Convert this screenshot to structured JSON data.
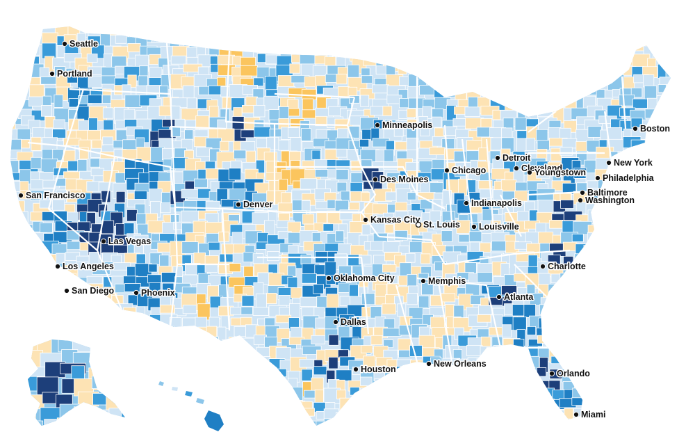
{
  "palette": {
    "dark_blue": "#1d3f7a",
    "blue": "#1f7fc4",
    "mid_blue": "#3a9bd9",
    "light_blue": "#8cc6ea",
    "pale_blue": "#cfe4f5",
    "pale_orange": "#fde3b4",
    "orange": "#fbc55e",
    "deep_orange": "#f08a1c",
    "border": "#ffffff",
    "label": "#111111"
  },
  "cities": [
    {
      "name": "Seattle",
      "dot": "filled"
    },
    {
      "name": "Portland",
      "dot": "filled"
    },
    {
      "name": "San Francisco",
      "dot": "filled"
    },
    {
      "name": "Los Angeles",
      "dot": "filled"
    },
    {
      "name": "San Diego",
      "dot": "filled"
    },
    {
      "name": "Las Vegas",
      "dot": "filled"
    },
    {
      "name": "Phoenix",
      "dot": "filled"
    },
    {
      "name": "Denver",
      "dot": "filled"
    },
    {
      "name": "Minneapolis",
      "dot": "filled"
    },
    {
      "name": "Des Moines",
      "dot": "filled"
    },
    {
      "name": "Kansas City",
      "dot": "filled"
    },
    {
      "name": "St. Louis",
      "dot": "hollow"
    },
    {
      "name": "Oklahoma City",
      "dot": "filled"
    },
    {
      "name": "Dallas",
      "dot": "filled"
    },
    {
      "name": "Houston",
      "dot": "filled"
    },
    {
      "name": "New Orleans",
      "dot": "filled"
    },
    {
      "name": "Memphis",
      "dot": "filled"
    },
    {
      "name": "Chicago",
      "dot": "filled"
    },
    {
      "name": "Detroit",
      "dot": "filled"
    },
    {
      "name": "Cleveland",
      "dot": "filled"
    },
    {
      "name": "Youngstown",
      "dot": "filled"
    },
    {
      "name": "Indianapolis",
      "dot": "filled"
    },
    {
      "name": "Louisville",
      "dot": "filled"
    },
    {
      "name": "Atlanta",
      "dot": "filled"
    },
    {
      "name": "Charlotte",
      "dot": "filled"
    },
    {
      "name": "Orlando",
      "dot": "filled"
    },
    {
      "name": "Miami",
      "dot": "filled"
    },
    {
      "name": "Washington",
      "dot": "filled"
    },
    {
      "name": "Baltimore",
      "dot": "filled"
    },
    {
      "name": "Philadelphia",
      "dot": "filled"
    },
    {
      "name": "New York",
      "dot": "filled"
    },
    {
      "name": "Boston",
      "dot": "filled"
    }
  ]
}
